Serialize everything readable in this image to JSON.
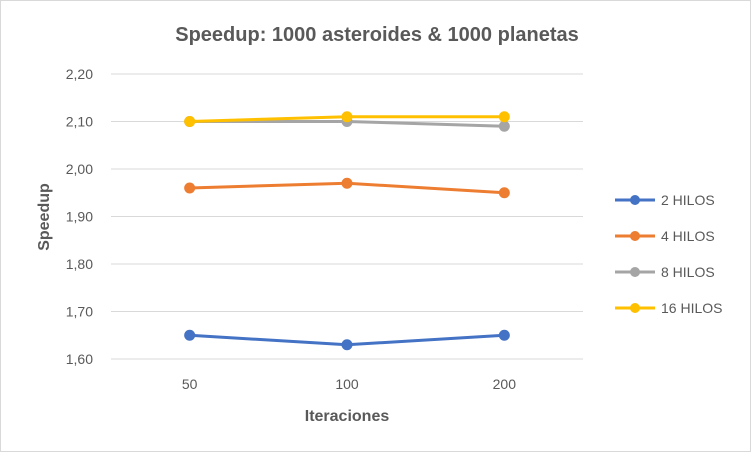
{
  "chart_data": {
    "type": "line",
    "title": "Speedup: 1000 asteroides & 1000 planetas",
    "xlabel": "Iteraciones",
    "ylabel": "Speedup",
    "categories": [
      "50",
      "100",
      "200"
    ],
    "ylim": [
      1.6,
      2.2
    ],
    "yticks": [
      1.6,
      1.7,
      1.8,
      1.9,
      2.0,
      2.1,
      2.2
    ],
    "ytick_labels": [
      "1,60",
      "1,70",
      "1,80",
      "1,90",
      "2,00",
      "2,10",
      "2,20"
    ],
    "grid": true,
    "legend_position": "right",
    "series": [
      {
        "name": "2 HILOS",
        "color": "#4472C4",
        "values": [
          1.65,
          1.63,
          1.65
        ]
      },
      {
        "name": "4 HILOS",
        "color": "#ED7D31",
        "values": [
          1.96,
          1.97,
          1.95
        ]
      },
      {
        "name": "8 HILOS",
        "color": "#A5A5A5",
        "values": [
          2.1,
          2.1,
          2.09
        ]
      },
      {
        "name": "16 HILOS",
        "color": "#FFC000",
        "values": [
          2.1,
          2.11,
          2.11
        ]
      }
    ]
  }
}
